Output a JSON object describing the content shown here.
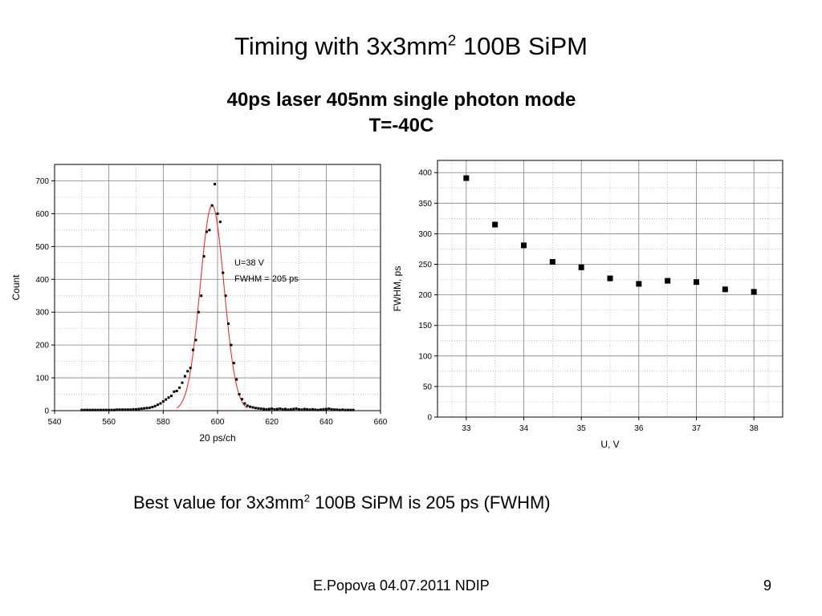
{
  "slide": {
    "title_pre": "Timing with 3x3mm",
    "title_sup": "2",
    "title_post": " 100B SiPM",
    "subtitle_line1": "40ps laser 405nm single photon mode",
    "subtitle_line2": "T=-40C",
    "best_pre": "Best value for 3x3mm",
    "best_sup": "2",
    "best_post": " 100B SiPM is 205 ps (FWHM)",
    "footer": "E.Popova 04.07.2011 NDIP",
    "page_number": "9"
  },
  "colors": {
    "fit_line": "#e8302a",
    "marker": "#000000",
    "grid": "#808080"
  },
  "chart_data": [
    {
      "type": "scatter",
      "xlabel": "20 ps/ch",
      "ylabel": "Count",
      "xlim": [
        540,
        660
      ],
      "ylim": [
        0,
        750
      ],
      "xticks": [
        540,
        560,
        580,
        600,
        620,
        640,
        660
      ],
      "yticks": [
        0,
        100,
        200,
        300,
        400,
        500,
        600,
        700
      ],
      "grid": true,
      "annotation_line1": "U=38 V",
      "annotation_line2": "FWHM = 205 ps",
      "points": [
        [
          550,
          2
        ],
        [
          551,
          2
        ],
        [
          552,
          2
        ],
        [
          553,
          2
        ],
        [
          554,
          2
        ],
        [
          555,
          2
        ],
        [
          556,
          2
        ],
        [
          557,
          2
        ],
        [
          558,
          2
        ],
        [
          559,
          2
        ],
        [
          560,
          2
        ],
        [
          561,
          2
        ],
        [
          562,
          2
        ],
        [
          563,
          3
        ],
        [
          564,
          3
        ],
        [
          565,
          3
        ],
        [
          566,
          3
        ],
        [
          567,
          3
        ],
        [
          568,
          3
        ],
        [
          569,
          4
        ],
        [
          570,
          4
        ],
        [
          571,
          5
        ],
        [
          572,
          6
        ],
        [
          573,
          7
        ],
        [
          574,
          8
        ],
        [
          575,
          9
        ],
        [
          576,
          11
        ],
        [
          577,
          14
        ],
        [
          578,
          18
        ],
        [
          579,
          22
        ],
        [
          580,
          28
        ],
        [
          581,
          34
        ],
        [
          582,
          40
        ],
        [
          583,
          45
        ],
        [
          584,
          58
        ],
        [
          585,
          60
        ],
        [
          586,
          70
        ],
        [
          587,
          85
        ],
        [
          588,
          105
        ],
        [
          589,
          120
        ],
        [
          590,
          130
        ],
        [
          591,
          185
        ],
        [
          592,
          215
        ],
        [
          593,
          300
        ],
        [
          594,
          350
        ],
        [
          595,
          470
        ],
        [
          596,
          545
        ],
        [
          597,
          550
        ],
        [
          598,
          625
        ],
        [
          599,
          690
        ],
        [
          600,
          600
        ],
        [
          601,
          575
        ],
        [
          602,
          420
        ],
        [
          603,
          350
        ],
        [
          604,
          265
        ],
        [
          605,
          200
        ],
        [
          606,
          145
        ],
        [
          607,
          95
        ],
        [
          608,
          50
        ],
        [
          609,
          35
        ],
        [
          610,
          22
        ],
        [
          611,
          15
        ],
        [
          612,
          12
        ],
        [
          613,
          10
        ],
        [
          614,
          8
        ],
        [
          615,
          7
        ],
        [
          616,
          6
        ],
        [
          617,
          5
        ],
        [
          618,
          4
        ],
        [
          619,
          5
        ],
        [
          620,
          6
        ],
        [
          621,
          4
        ],
        [
          622,
          5
        ],
        [
          623,
          6
        ],
        [
          624,
          4
        ],
        [
          625,
          5
        ],
        [
          626,
          3
        ],
        [
          627,
          4
        ],
        [
          628,
          5
        ],
        [
          629,
          6
        ],
        [
          630,
          4
        ],
        [
          631,
          3
        ],
        [
          632,
          5
        ],
        [
          633,
          4
        ],
        [
          634,
          3
        ],
        [
          635,
          4
        ],
        [
          636,
          3
        ],
        [
          637,
          2
        ],
        [
          638,
          3
        ],
        [
          639,
          4
        ],
        [
          640,
          5
        ],
        [
          641,
          6
        ],
        [
          642,
          4
        ],
        [
          643,
          3
        ],
        [
          644,
          3
        ],
        [
          645,
          2
        ],
        [
          646,
          3
        ],
        [
          647,
          2
        ],
        [
          648,
          2
        ],
        [
          649,
          2
        ],
        [
          650,
          2
        ]
      ],
      "fit": {
        "type": "gaussian",
        "center": 598,
        "amplitude": 625,
        "sigma": 4.4
      }
    },
    {
      "type": "scatter",
      "xlabel": "U, V",
      "ylabel": "FWHM, ps",
      "xlim": [
        32.5,
        38.5
      ],
      "ylim": [
        0,
        420
      ],
      "xticks": [
        33,
        34,
        35,
        36,
        37,
        38
      ],
      "yticks": [
        0,
        50,
        100,
        150,
        200,
        250,
        300,
        350,
        400
      ],
      "grid": true,
      "x": [
        33,
        33.5,
        34,
        34.5,
        35,
        35.5,
        36,
        36.5,
        37,
        37.5,
        38
      ],
      "y": [
        391,
        315,
        281,
        254,
        245,
        227,
        218,
        223,
        221,
        209,
        205
      ]
    }
  ]
}
